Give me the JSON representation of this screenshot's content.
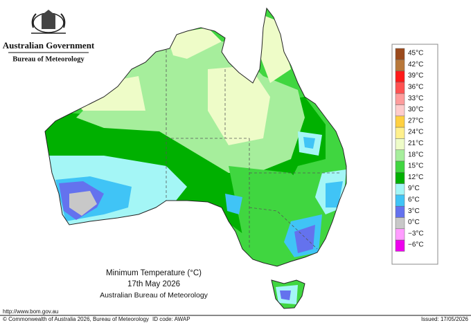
{
  "header": {
    "government": "Australian Government",
    "agency": "Bureau of Meteorology"
  },
  "title": {
    "line1": "Minimum Temperature (°C)",
    "line2": "17th May 2026",
    "line3": "Australian Bureau of Meteorology"
  },
  "legend": {
    "entries": [
      {
        "label": "45°C",
        "color": "#9b4a1c"
      },
      {
        "label": "42°C",
        "color": "#b8783a"
      },
      {
        "label": "39°C",
        "color": "#ff1a1a"
      },
      {
        "label": "36°C",
        "color": "#ff5252"
      },
      {
        "label": "33°C",
        "color": "#ff9c9c"
      },
      {
        "label": "30°C",
        "color": "#ffcccc"
      },
      {
        "label": "27°C",
        "color": "#ffd040"
      },
      {
        "label": "24°C",
        "color": "#fff08c"
      },
      {
        "label": "21°C",
        "color": "#eefcc8"
      },
      {
        "label": "18°C",
        "color": "#a6ee9c"
      },
      {
        "label": "15°C",
        "color": "#40d640"
      },
      {
        "label": "12°C",
        "color": "#00b000"
      },
      {
        "label": "9°C",
        "color": "#a4f6f6"
      },
      {
        "label": "6°C",
        "color": "#40c4f6"
      },
      {
        "label": "3°C",
        "color": "#6472ee"
      },
      {
        "label": "0°C",
        "color": "#c8c8c8"
      },
      {
        "label": "−3°C",
        "color": "#ff9cff"
      },
      {
        "label": "−6°C",
        "color": "#ee00ee"
      }
    ]
  },
  "footer": {
    "url": "http://www.bom.gov.au",
    "copyright": "© Commonwealth of Australia 2026, Bureau of Meteorology",
    "id_code": "ID code: AWAP",
    "issued": "Issued: 17/05/2026"
  }
}
